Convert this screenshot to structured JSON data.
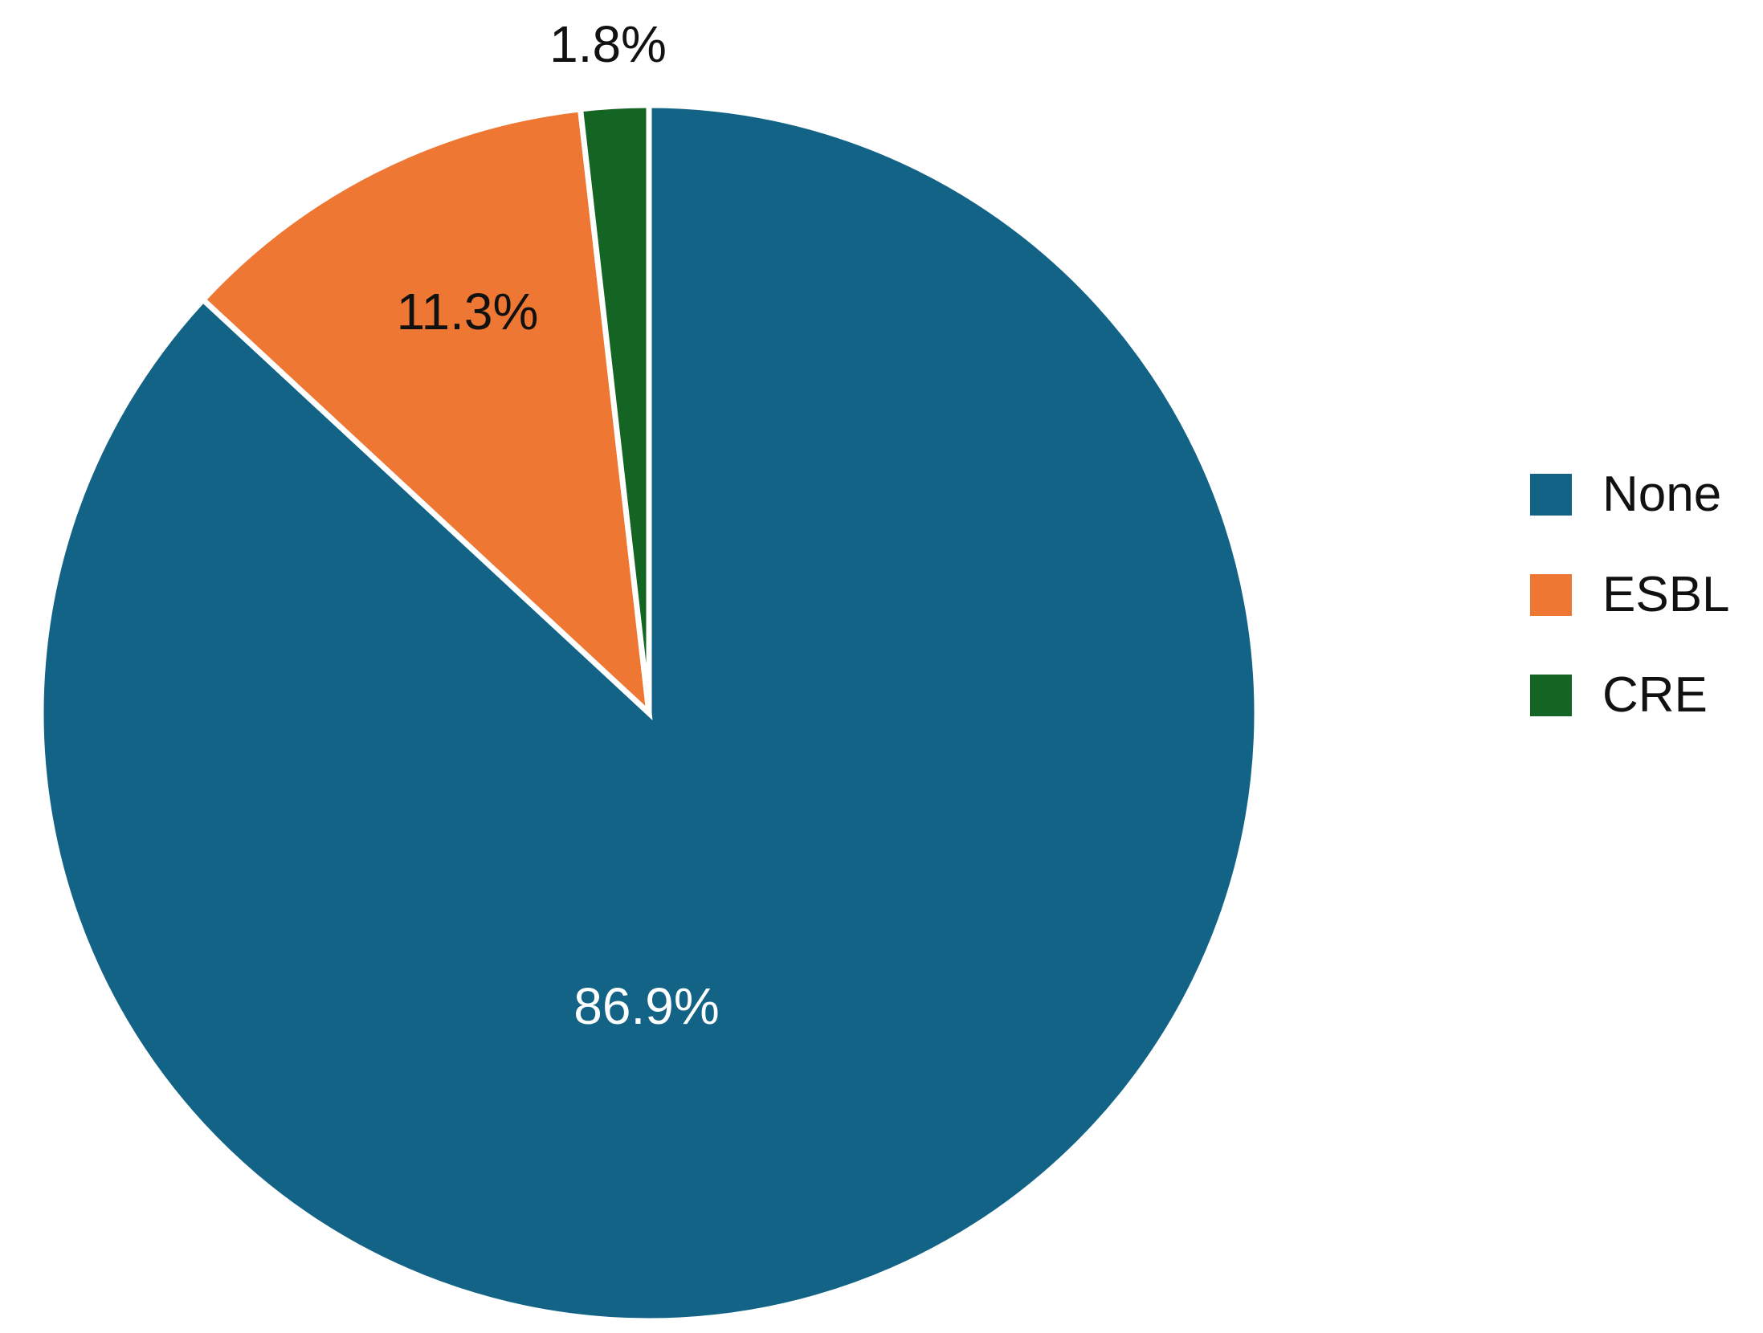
{
  "chart_data": {
    "type": "pie",
    "title": "",
    "slices": [
      {
        "name": "None",
        "value": 86.9,
        "label": "86.9%",
        "color": "#126386",
        "label_color": "#ffffff"
      },
      {
        "name": "ESBL",
        "value": 11.3,
        "label": "11.3%",
        "color": "#ED7733",
        "label_color": "#111111"
      },
      {
        "name": "CRE",
        "value": 1.8,
        "label": "1.8%",
        "color": "#146423",
        "label_color": "#111111"
      }
    ],
    "start_angle": "12 o'clock",
    "direction": "clockwise",
    "legend_placement": "right",
    "slice_border_color": "#ffffff"
  },
  "legend": {
    "items": [
      {
        "label": "None",
        "color": "#126386"
      },
      {
        "label": "ESBL",
        "color": "#ED7733"
      },
      {
        "label": "CRE",
        "color": "#146423"
      }
    ]
  }
}
